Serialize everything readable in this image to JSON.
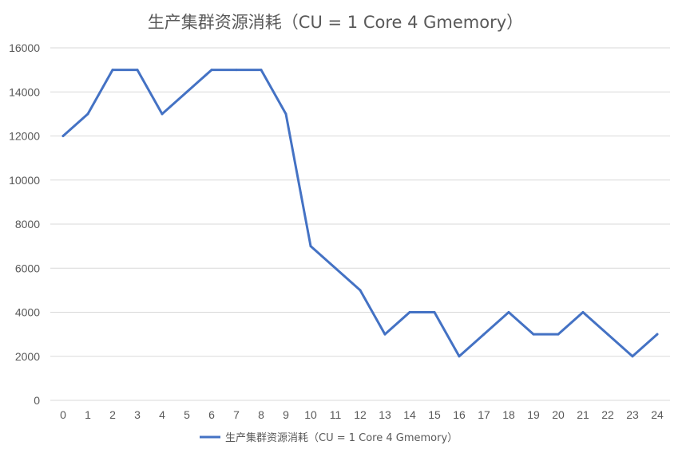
{
  "chart_data": {
    "type": "line",
    "title": "生产集群资源消耗（CU = 1 Core 4 Gmemory）",
    "xlabel": "",
    "ylabel": "",
    "x": [
      "0",
      "1",
      "2",
      "3",
      "4",
      "5",
      "6",
      "7",
      "8",
      "9",
      "10",
      "11",
      "12",
      "13",
      "14",
      "15",
      "16",
      "17",
      "18",
      "19",
      "20",
      "21",
      "22",
      "23",
      "24"
    ],
    "series": [
      {
        "name": "生产集群资源消耗（CU = 1 Core 4 Gmemory）",
        "values": [
          12000,
          13000,
          15000,
          15000,
          13000,
          14000,
          15000,
          15000,
          15000,
          13000,
          7000,
          6000,
          5000,
          3000,
          4000,
          4000,
          2000,
          3000,
          4000,
          3000,
          3000,
          4000,
          3000,
          2000,
          3000
        ]
      }
    ],
    "ylim": [
      0,
      16000
    ],
    "yticks": [
      "0",
      "2000",
      "4000",
      "6000",
      "8000",
      "10000",
      "12000",
      "14000",
      "16000"
    ],
    "grid": true,
    "legend_position": "bottom",
    "colors": {
      "line": "#4472c4",
      "grid": "#d9d9d9",
      "text": "#595959"
    }
  }
}
